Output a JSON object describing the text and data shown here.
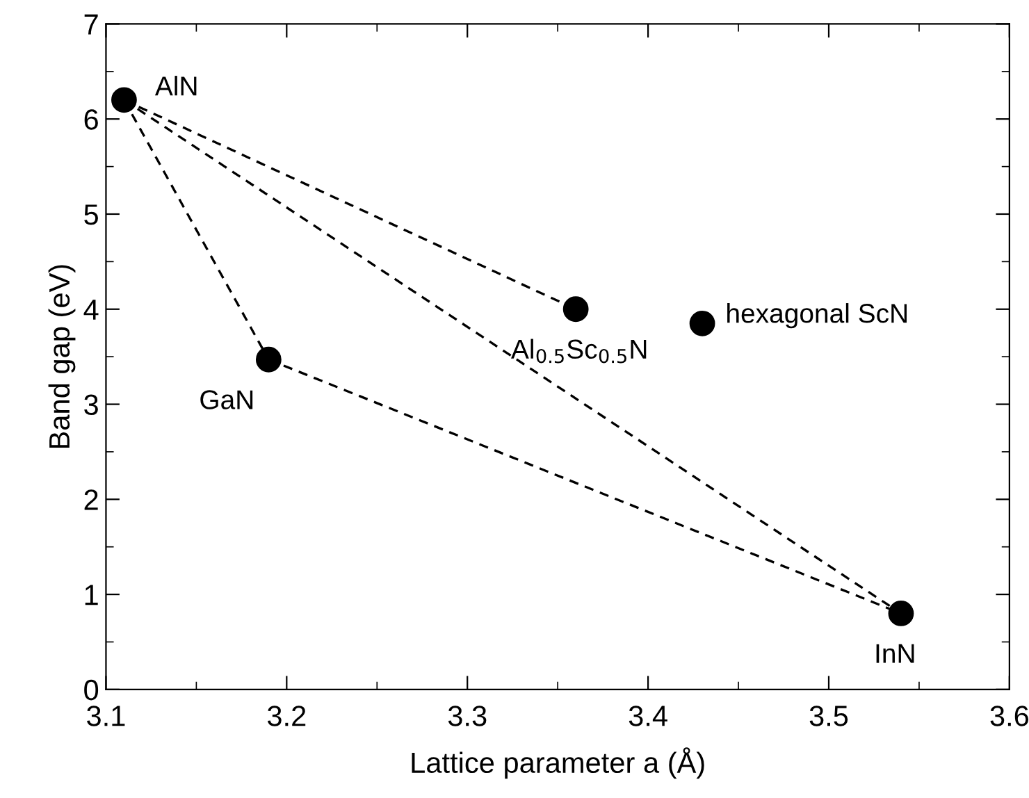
{
  "chart_data": {
    "type": "scatter",
    "xlabel": "Lattice parameter a (Å)",
    "ylabel": "Band gap (eV)",
    "xlim": [
      3.1,
      3.6
    ],
    "xticks": [
      3.1,
      3.2,
      3.3,
      3.4,
      3.5,
      3.6
    ],
    "ylim": [
      0,
      7
    ],
    "yticks": [
      0,
      1,
      2,
      3,
      4,
      5,
      6,
      7
    ],
    "grid": false,
    "legend": false,
    "series": [
      {
        "type": "line",
        "color": "#000000",
        "line_style": "dashed",
        "marker": "none",
        "x": [
          3.11,
          3.36
        ],
        "values": [
          6.2,
          4.0
        ]
      },
      {
        "type": "line",
        "color": "#000000",
        "line_style": "dashed",
        "marker": "none",
        "x": [
          3.11,
          3.54
        ],
        "values": [
          6.2,
          0.8
        ]
      },
      {
        "type": "line",
        "color": "#000000",
        "line_style": "dashed",
        "marker": "none",
        "x": [
          3.11,
          3.19
        ],
        "values": [
          6.2,
          3.47
        ]
      },
      {
        "type": "line",
        "color": "#000000",
        "line_style": "dashed",
        "marker": "none",
        "x": [
          3.19,
          3.54
        ],
        "values": [
          3.47,
          0.8
        ]
      },
      {
        "color": "#000000",
        "marker": "circle",
        "x": [
          3.11,
          3.19,
          3.36,
          3.43,
          3.54
        ],
        "values": [
          6.2,
          3.47,
          4.0,
          3.85,
          0.8
        ]
      }
    ],
    "annotations": [
      {
        "text": "AlN",
        "x": 3.11,
        "y": 6.2
      },
      {
        "text": "GaN",
        "x": 3.19,
        "y": 3.47
      },
      {
        "text": "Al$_{0.5}$Sc$_{0.5}$N",
        "x": 3.36,
        "y": 4.0
      },
      {
        "text": "hexagonal ScN",
        "x": 3.43,
        "y": 3.85
      },
      {
        "text": "InN",
        "x": 3.54,
        "y": 0.8
      }
    ]
  }
}
